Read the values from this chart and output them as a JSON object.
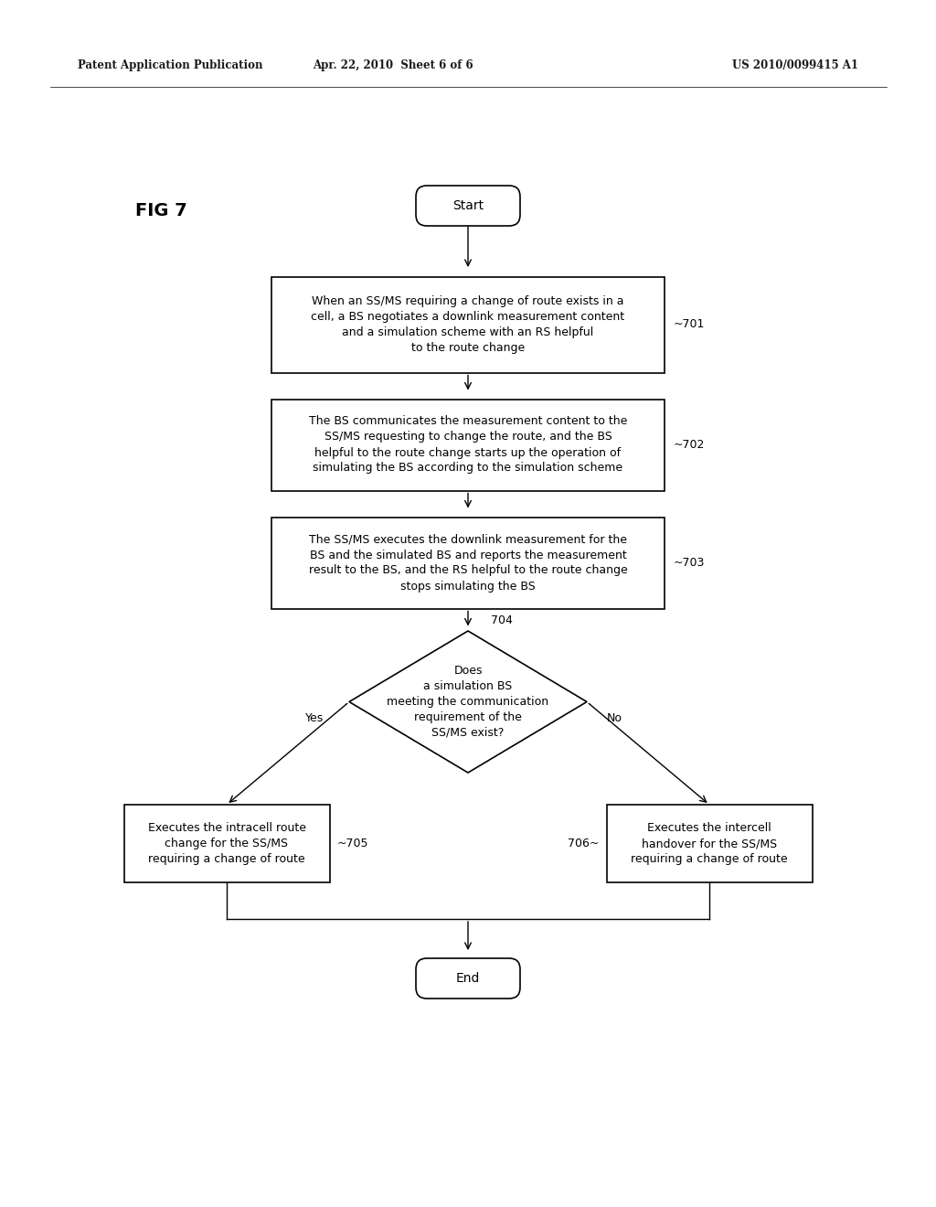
{
  "fig_label": "FIG 7",
  "header_left": "Patent Application Publication",
  "header_mid": "Apr. 22, 2010  Sheet 6 of 6",
  "header_right": "US 2010/0099415 A1",
  "background_color": "#ffffff",
  "start_text": "Start",
  "end_text": "End",
  "box701_text": "When an SS/MS requiring a change of route exists in a\ncell, a BS negotiates a downlink measurement content\nand a simulation scheme with an RS helpful\nto the route change",
  "box702_text": "The BS communicates the measurement content to the\nSS/MS requesting to change the route, and the BS\nhelpful to the route change starts up the operation of\nsimulating the BS according to the simulation scheme",
  "box703_text": "The SS/MS executes the downlink measurement for the\nBS and the simulated BS and reports the measurement\nresult to the BS, and the RS helpful to the route change\nstops simulating the BS",
  "diamond_text": "Does\na simulation BS\nmeeting the communication\nrequirement of the\nSS/MS exist?",
  "box705_text": "Executes the intracell route\nchange for the SS/MS\nrequiring a change of route",
  "box706_text": "Executes the intercell\nhandover for the SS/MS\nrequiring a change of route",
  "label701": "~701",
  "label702": "~702",
  "label703": "~703",
  "label704": "704",
  "label705": "~705",
  "label706": "706~",
  "yes_text": "Yes",
  "no_text": "No",
  "body_fontsize": 9,
  "label_fontsize": 9,
  "terminal_fontsize": 10,
  "header_fontsize": 8.5
}
